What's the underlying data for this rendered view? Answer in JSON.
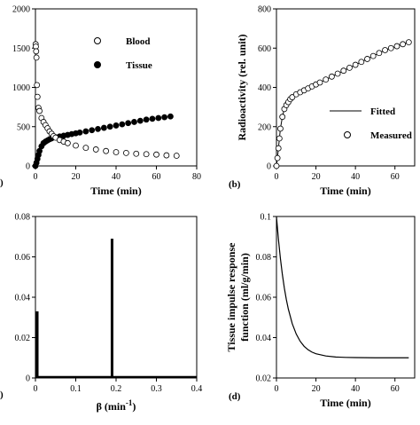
{
  "chart_data": [
    {
      "panel": "a",
      "type": "scatter",
      "xlabel": "Time (min)",
      "ylabel": "",
      "xlim": [
        0,
        80
      ],
      "ylim": [
        0,
        2000
      ],
      "xticks": [
        0,
        20,
        40,
        60,
        80
      ],
      "yticks": [
        0,
        500,
        1000,
        1500,
        2000
      ],
      "legend_position": "top-right",
      "series": [
        {
          "name": "Blood",
          "marker": "open-circle",
          "x": [
            0.1,
            0.2,
            0.35,
            0.5,
            0.75,
            1,
            1.5,
            2,
            3,
            4,
            5,
            6,
            7,
            8,
            9,
            10,
            12,
            14,
            16,
            20,
            25,
            30,
            35,
            40,
            45,
            50,
            55,
            60,
            65,
            70
          ],
          "y": [
            1550,
            1520,
            1460,
            1380,
            1030,
            880,
            740,
            700,
            610,
            560,
            520,
            480,
            440,
            410,
            380,
            360,
            330,
            310,
            290,
            260,
            230,
            210,
            190,
            175,
            165,
            155,
            150,
            145,
            135,
            130
          ]
        },
        {
          "name": "Tissue",
          "marker": "filled-circle",
          "x": [
            0,
            0.5,
            1,
            1.5,
            2,
            3,
            4,
            5,
            6,
            7,
            8,
            10,
            12,
            14,
            16,
            18,
            20,
            22,
            25,
            28,
            31,
            34,
            37,
            40,
            43,
            46,
            49,
            52,
            55,
            58,
            61,
            64,
            67
          ],
          "y": [
            0,
            40,
            90,
            140,
            190,
            250,
            290,
            310,
            325,
            340,
            350,
            365,
            375,
            385,
            395,
            405,
            415,
            425,
            440,
            455,
            470,
            485,
            500,
            515,
            530,
            545,
            560,
            575,
            590,
            600,
            610,
            620,
            630
          ]
        }
      ]
    },
    {
      "panel": "b",
      "type": "scatter",
      "xlabel": "Time (min)",
      "ylabel": "Radioactivity (rel. unit)",
      "xlim": [
        0,
        70
      ],
      "ylim": [
        0,
        800
      ],
      "xticks": [
        0,
        20,
        40,
        60
      ],
      "yticks": [
        0,
        200,
        400,
        600,
        800
      ],
      "legend_position": "bottom-right",
      "series": [
        {
          "name": "Fitted",
          "marker": "line",
          "x": [
            0,
            0.5,
            1,
            1.5,
            2,
            3,
            4,
            5,
            6,
            8,
            10,
            12,
            14,
            16,
            18,
            20,
            22,
            25,
            28,
            31,
            34,
            37,
            40,
            43,
            46,
            49,
            52,
            55,
            58,
            61,
            64,
            67
          ],
          "y": [
            0,
            40,
            90,
            140,
            190,
            250,
            290,
            310,
            325,
            350,
            365,
            375,
            385,
            395,
            405,
            415,
            425,
            440,
            455,
            470,
            485,
            500,
            515,
            530,
            545,
            560,
            575,
            590,
            600,
            610,
            620,
            630
          ]
        },
        {
          "name": "Measured",
          "marker": "open-circle",
          "x": [
            0,
            0.5,
            1,
            1.5,
            2,
            3,
            4,
            5,
            6,
            7,
            8,
            10,
            12,
            14,
            16,
            18,
            20,
            22,
            25,
            28,
            31,
            34,
            37,
            40,
            43,
            46,
            49,
            52,
            55,
            58,
            61,
            64,
            67
          ],
          "y": [
            0,
            40,
            90,
            140,
            190,
            250,
            290,
            310,
            325,
            340,
            350,
            365,
            375,
            385,
            395,
            405,
            415,
            425,
            440,
            455,
            470,
            485,
            500,
            515,
            530,
            545,
            560,
            575,
            590,
            600,
            610,
            620,
            630
          ]
        }
      ]
    },
    {
      "panel": "c",
      "type": "bar",
      "xlabel": "β (min",
      "xlabel_exponent": "-1",
      "xlabel_close": ")",
      "xlim": [
        0,
        0.4
      ],
      "ylim": [
        0,
        0.08
      ],
      "xticks": [
        0,
        0.1,
        0.2,
        0.3,
        0.4
      ],
      "yticks": [
        0,
        0.02,
        0.04,
        0.06,
        0.08
      ],
      "series": [
        {
          "x": [
            0,
            0.19
          ],
          "values": [
            0.033,
            0.069
          ]
        }
      ]
    },
    {
      "panel": "d",
      "type": "line",
      "xlabel": "Time (min)",
      "ylabel": "Tissue impulse response function (ml/g/min)",
      "ylabel_lines": [
        "Tissue impulse response",
        "function (ml/g/min)"
      ],
      "xlim": [
        0,
        70
      ],
      "ylim": [
        0.02,
        0.1
      ],
      "xticks": [
        0,
        20,
        40,
        60
      ],
      "yticks": [
        0.02,
        0.04,
        0.06,
        0.08,
        0.1
      ],
      "series": [
        {
          "x": [
            0,
            1,
            2,
            3,
            4,
            5,
            6,
            8,
            10,
            12,
            14,
            16,
            18,
            20,
            25,
            30,
            35,
            40,
            50,
            60,
            67
          ],
          "y": [
            0.1,
            0.0887,
            0.0792,
            0.0712,
            0.0645,
            0.0589,
            0.0542,
            0.0469,
            0.0418,
            0.0382,
            0.0357,
            0.034,
            0.0328,
            0.032,
            0.0309,
            0.0304,
            0.0302,
            0.0301,
            0.03,
            0.03,
            0.03
          ]
        }
      ]
    }
  ],
  "panel_labels": {
    "b": "(b)",
    "d": "(d)",
    "a_fragment": ")",
    "c_fragment": ")"
  },
  "legend_labels": {
    "blood": "Blood",
    "tissue": "Tissue",
    "fitted": "Fitted",
    "measured": "Measured"
  }
}
